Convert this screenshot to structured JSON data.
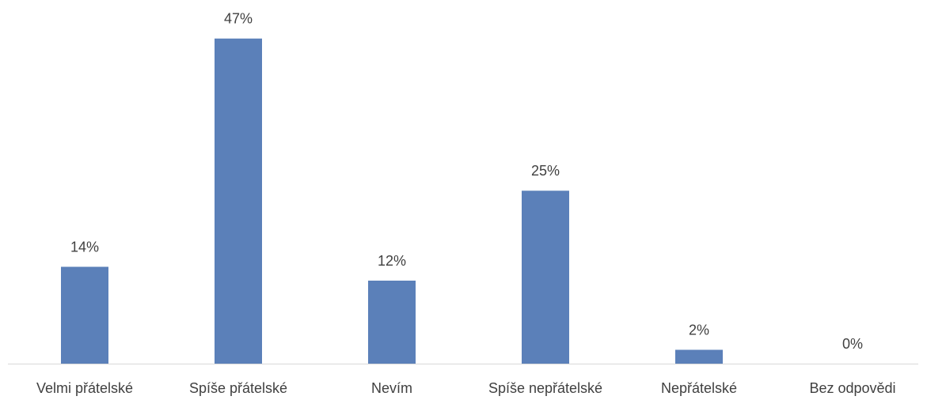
{
  "chart_data": {
    "type": "bar",
    "categories": [
      "Velmi přátelské",
      "Spíše přátelské",
      "Nevím",
      "Spíše nepřátelské",
      "Nepřátelské",
      "Bez odpovědi"
    ],
    "values": [
      14,
      47,
      12,
      25,
      2,
      0
    ],
    "value_labels": [
      "14%",
      "47%",
      "12%",
      "25%",
      "2%",
      "0%"
    ],
    "color": "#5b80b9"
  }
}
